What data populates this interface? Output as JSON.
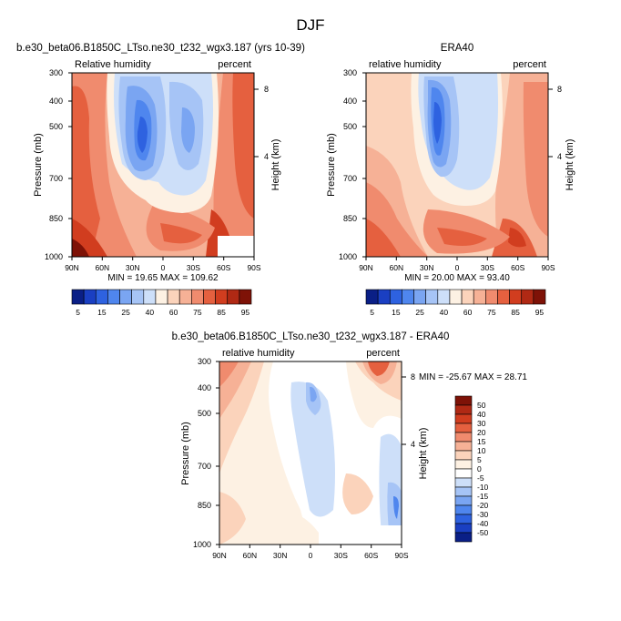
{
  "chart_data": {
    "type": "contour",
    "title": "DJF",
    "panels": [
      {
        "id": "model",
        "title": "b.e30_beta06.B1850C_LTso.ne30_t232_wgx3.187 (yrs 10-39)",
        "left_label": "Relative humidity",
        "right_label": "percent",
        "ylabel": "Pressure (mb)",
        "ylabel_right": "Height (km)",
        "pressure_ticks": [
          "300",
          "400",
          "500",
          "700",
          "850",
          "1000"
        ],
        "height_ticks": [
          "8",
          "4"
        ],
        "lat_ticks": [
          "90N",
          "60N",
          "30N",
          "0",
          "30S",
          "60S",
          "90S"
        ],
        "stats": "MIN = 19.65  MAX = 109.62",
        "min": 19.65,
        "max": 109.62
      },
      {
        "id": "obs",
        "title": "ERA40",
        "left_label": "relative humidity",
        "right_label": "percent",
        "ylabel": "Pressure (mb)",
        "ylabel_right": "Height (km)",
        "pressure_ticks": [
          "300",
          "400",
          "500",
          "700",
          "850",
          "1000"
        ],
        "height_ticks": [
          "8",
          "4"
        ],
        "lat_ticks": [
          "90N",
          "60N",
          "30N",
          "0",
          "30S",
          "60S",
          "90S"
        ],
        "stats": "MIN = 20.00  MAX = 93.40",
        "min": 20.0,
        "max": 93.4
      },
      {
        "id": "diff",
        "title": "b.e30_beta06.B1850C_LTso.ne30_t232_wgx3.187 - ERA40",
        "left_label": "relative humidity",
        "right_label": "percent",
        "ylabel": "Pressure (mb)",
        "ylabel_right": "Height (km)",
        "pressure_ticks": [
          "300",
          "400",
          "500",
          "700",
          "850",
          "1000"
        ],
        "height_ticks": [
          "8",
          "4"
        ],
        "lat_ticks": [
          "90N",
          "60N",
          "30N",
          "0",
          "30S",
          "60S",
          "90S"
        ],
        "stats": "MIN = -25.67  MAX =  28.71",
        "min": -25.67,
        "max": 28.71
      }
    ],
    "colorbar_rh": {
      "levels": [
        "5",
        "15",
        "25",
        "40",
        "60",
        "75",
        "85",
        "95"
      ],
      "colors": [
        "#0a1f86",
        "#1a3fc2",
        "#2e62e0",
        "#4f86ee",
        "#7aa5f2",
        "#a6c4f6",
        "#cddff9",
        "#fdf1e3",
        "#fbd3bb",
        "#f6b196",
        "#f08b6e",
        "#e5603f",
        "#d13d1f",
        "#b02914",
        "#7e1207"
      ]
    },
    "colorbar_diff": {
      "levels": [
        "50",
        "40",
        "30",
        "20",
        "15",
        "10",
        "5",
        "0",
        "-5",
        "-10",
        "-15",
        "-20",
        "-30",
        "-40",
        "-50"
      ],
      "colors": [
        "#7e1207",
        "#b02914",
        "#d13d1f",
        "#e5603f",
        "#f08b6e",
        "#f6b196",
        "#fbd3bb",
        "#fdf1e3",
        "#ffffff",
        "#cddff9",
        "#a6c4f6",
        "#7aa5f2",
        "#4f86ee",
        "#2e62e0",
        "#1a3fc2",
        "#0a1f86"
      ]
    }
  }
}
